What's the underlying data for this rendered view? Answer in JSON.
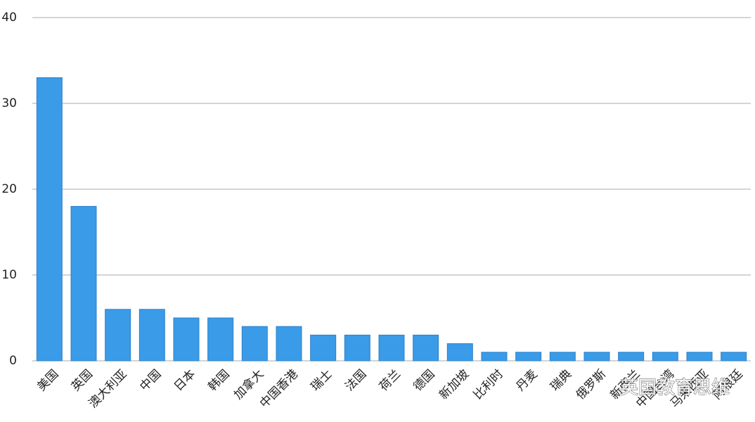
{
  "chart_data": {
    "type": "bar",
    "categories": [
      "美国",
      "英国",
      "澳大利亚",
      "中国",
      "日本",
      "韩国",
      "加拿大",
      "中国香港",
      "瑞士",
      "法国",
      "荷兰",
      "德国",
      "新加坡",
      "比利时",
      "丹麦",
      "瑞典",
      "俄罗斯",
      "新西兰",
      "中国台湾",
      "马来西亚",
      "阿根廷"
    ],
    "values": [
      33,
      18,
      6,
      6,
      5,
      5,
      4,
      4,
      3,
      3,
      3,
      3,
      2,
      1,
      1,
      1,
      1,
      1,
      1,
      1,
      1
    ],
    "color": "#3a9be8",
    "ylim": [
      0,
      40
    ],
    "yticks": [
      0,
      10,
      20,
      30,
      40
    ],
    "grid": true
  },
  "watermark": "英国教育思维"
}
